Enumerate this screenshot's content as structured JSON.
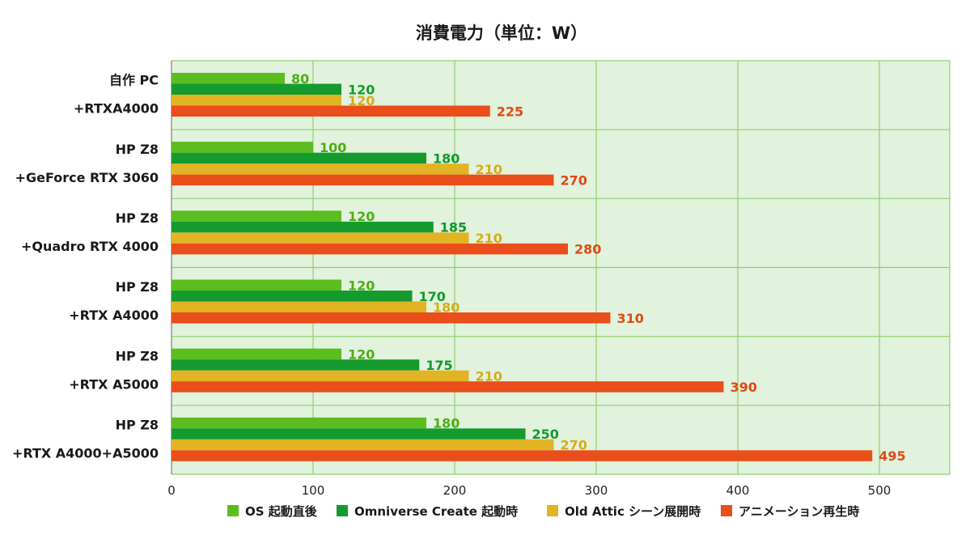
{
  "chart_data": {
    "type": "bar",
    "orientation": "horizontal",
    "title": "消費電力（単位：W）",
    "categories": [
      [
        "自作 PC",
        "+RTXA4000"
      ],
      [
        "HP Z8",
        "+GeForce RTX 3060"
      ],
      [
        "HP Z8",
        "+Quadro RTX 4000"
      ],
      [
        "HP Z8",
        "+RTX A4000"
      ],
      [
        "HP Z8",
        "+RTX A5000"
      ],
      [
        "HP Z8",
        "+RTX A4000+A5000"
      ]
    ],
    "series": [
      {
        "name": "OS 起動直後",
        "color": "#5bbd1e",
        "label_color": "#4fae15",
        "values": [
          80,
          100,
          120,
          120,
          120,
          180
        ]
      },
      {
        "name": "Omniverse Create 起動時",
        "color": "#159a2e",
        "label_color": "#149a2b",
        "values": [
          120,
          180,
          185,
          170,
          175,
          250
        ]
      },
      {
        "name": "Old Attic シーン展開時",
        "color": "#e2b323",
        "label_color": "#d9ab17",
        "values": [
          120,
          210,
          210,
          180,
          210,
          270
        ]
      },
      {
        "name": "アニメーション再生時",
        "color": "#e94e1b",
        "label_color": "#e04b15",
        "values": [
          225,
          270,
          280,
          310,
          390,
          495
        ]
      }
    ],
    "xlim": [
      0,
      550
    ],
    "xticks": [
      0,
      100,
      200,
      300,
      400,
      500
    ],
    "grid": true,
    "plot_background": "#e1f2dd",
    "grid_color": "#8fd06a",
    "legend_position": "bottom"
  }
}
